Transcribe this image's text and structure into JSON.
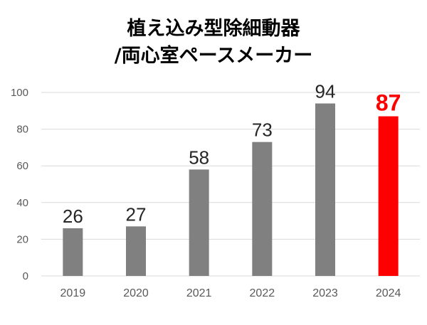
{
  "chart_data": {
    "type": "bar",
    "title_lines": [
      "植え込み型除細動器",
      "/両心室ペースメーカー"
    ],
    "categories": [
      "2019",
      "2020",
      "2021",
      "2022",
      "2023",
      "2024"
    ],
    "values": [
      26,
      27,
      58,
      73,
      94,
      87
    ],
    "highlight_index": 5,
    "ylim": [
      0,
      100
    ],
    "yticks": [
      "0",
      "20",
      "40",
      "60",
      "80",
      "100"
    ],
    "xlabel": "",
    "ylabel": "",
    "grid": true,
    "colors": {
      "bar": "#808080",
      "highlight": "#ff0000",
      "grid": "#d9d9d9"
    }
  }
}
